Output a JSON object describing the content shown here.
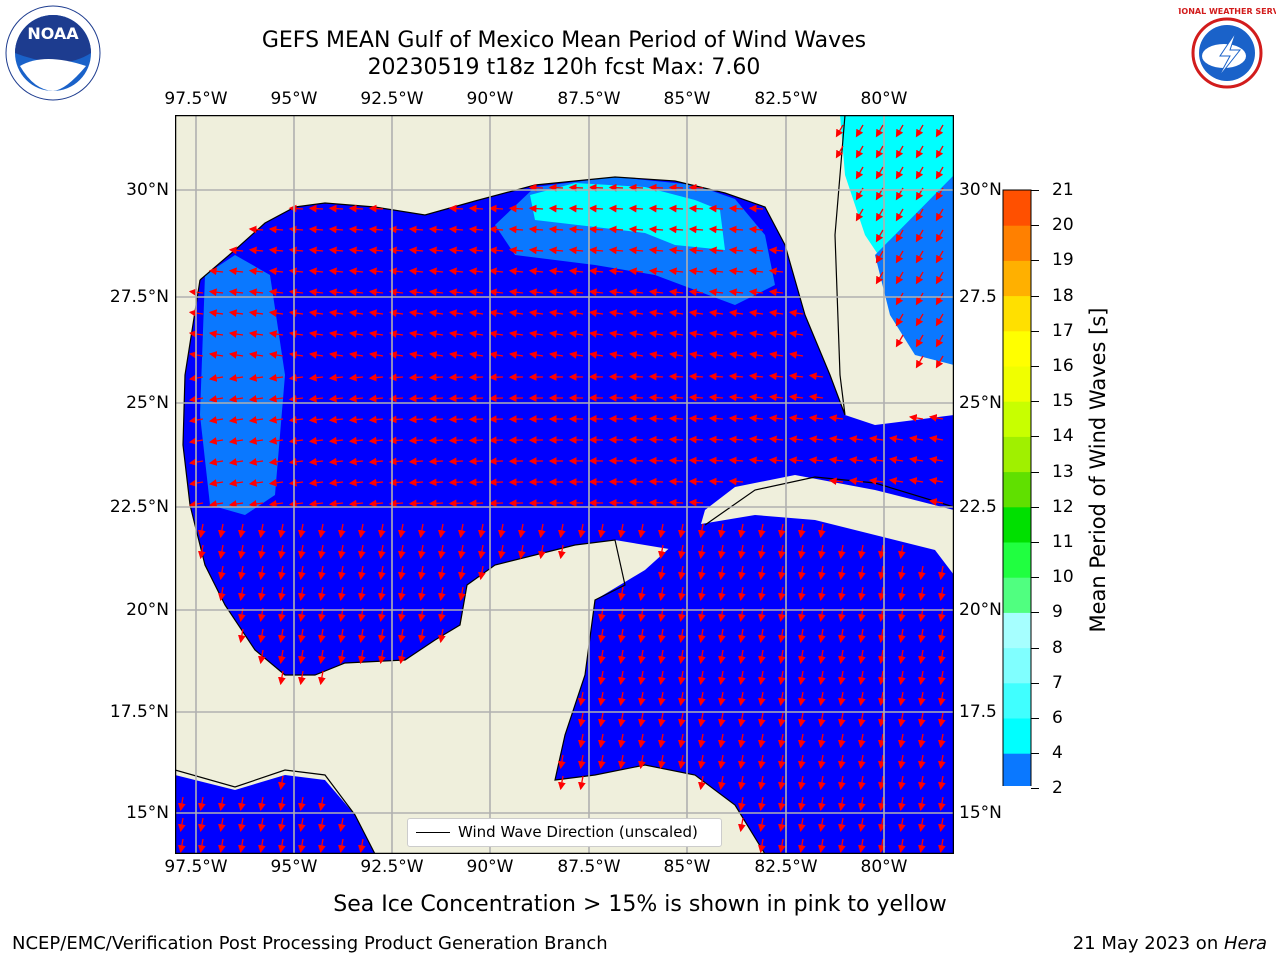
{
  "title": {
    "line1": "GEFS MEAN Gulf of Mexico Mean Period of Wind Waves",
    "line2": "20230519 t18z 120h fcst   Max: 7.60"
  },
  "logos": {
    "left": {
      "icon": "noaa-logo-icon",
      "text": "NOAA"
    },
    "right": {
      "icon": "nws-logo-icon",
      "text": "NATIONAL WEATHER SERVICE"
    }
  },
  "axes": {
    "x_labels": [
      "97.5°W",
      "95°W",
      "92.5°W",
      "90°W",
      "87.5°W",
      "85°W",
      "82.5°W",
      "80°W"
    ],
    "y_labels_left": [
      "30°N",
      "27.5°N",
      "25°N",
      "22.5°N",
      "20°N",
      "17.5°N",
      "15°N"
    ],
    "y_labels_right": [
      "30°N",
      "27.5",
      "25°N",
      "22.5",
      "20°N",
      "17.5",
      "15°N"
    ]
  },
  "legend": {
    "label": "Wind Wave Direction (unscaled)"
  },
  "colorbar": {
    "label": "Mean Period of Wind Waves [s]",
    "ticks": [
      "2",
      "4",
      "6",
      "7",
      "8",
      "9",
      "10",
      "11",
      "12",
      "13",
      "14",
      "15",
      "16",
      "17",
      "18",
      "19",
      "20",
      "21"
    ],
    "colors": [
      "#0a78ff",
      "#00ffff",
      "#40ffff",
      "#80ffff",
      "#a6ffff",
      "#50ff80",
      "#20ff40",
      "#00e000",
      "#60e000",
      "#a0f000",
      "#c8ff00",
      "#f0ff00",
      "#ffff00",
      "#ffe000",
      "#ffb000",
      "#ff8000",
      "#ff5000",
      "#ff2000",
      "#ff0000"
    ],
    "underflow_color": "#0000ff"
  },
  "colors": {
    "land": "#efefdc",
    "water_low": "#0000ff",
    "water_mid": "#0a78ff",
    "water_high": "#00ffff",
    "arrow": "#ff0000",
    "grid": "#b0b0b0"
  },
  "caption": "Sea Ice Concentration > 15% is shown in pink to yellow",
  "footer": {
    "left": "NCEP/EMC/Verification Post Processing Product Generation Branch",
    "right_prefix": "21 May 2023 on ",
    "right_machine": "Hera"
  }
}
